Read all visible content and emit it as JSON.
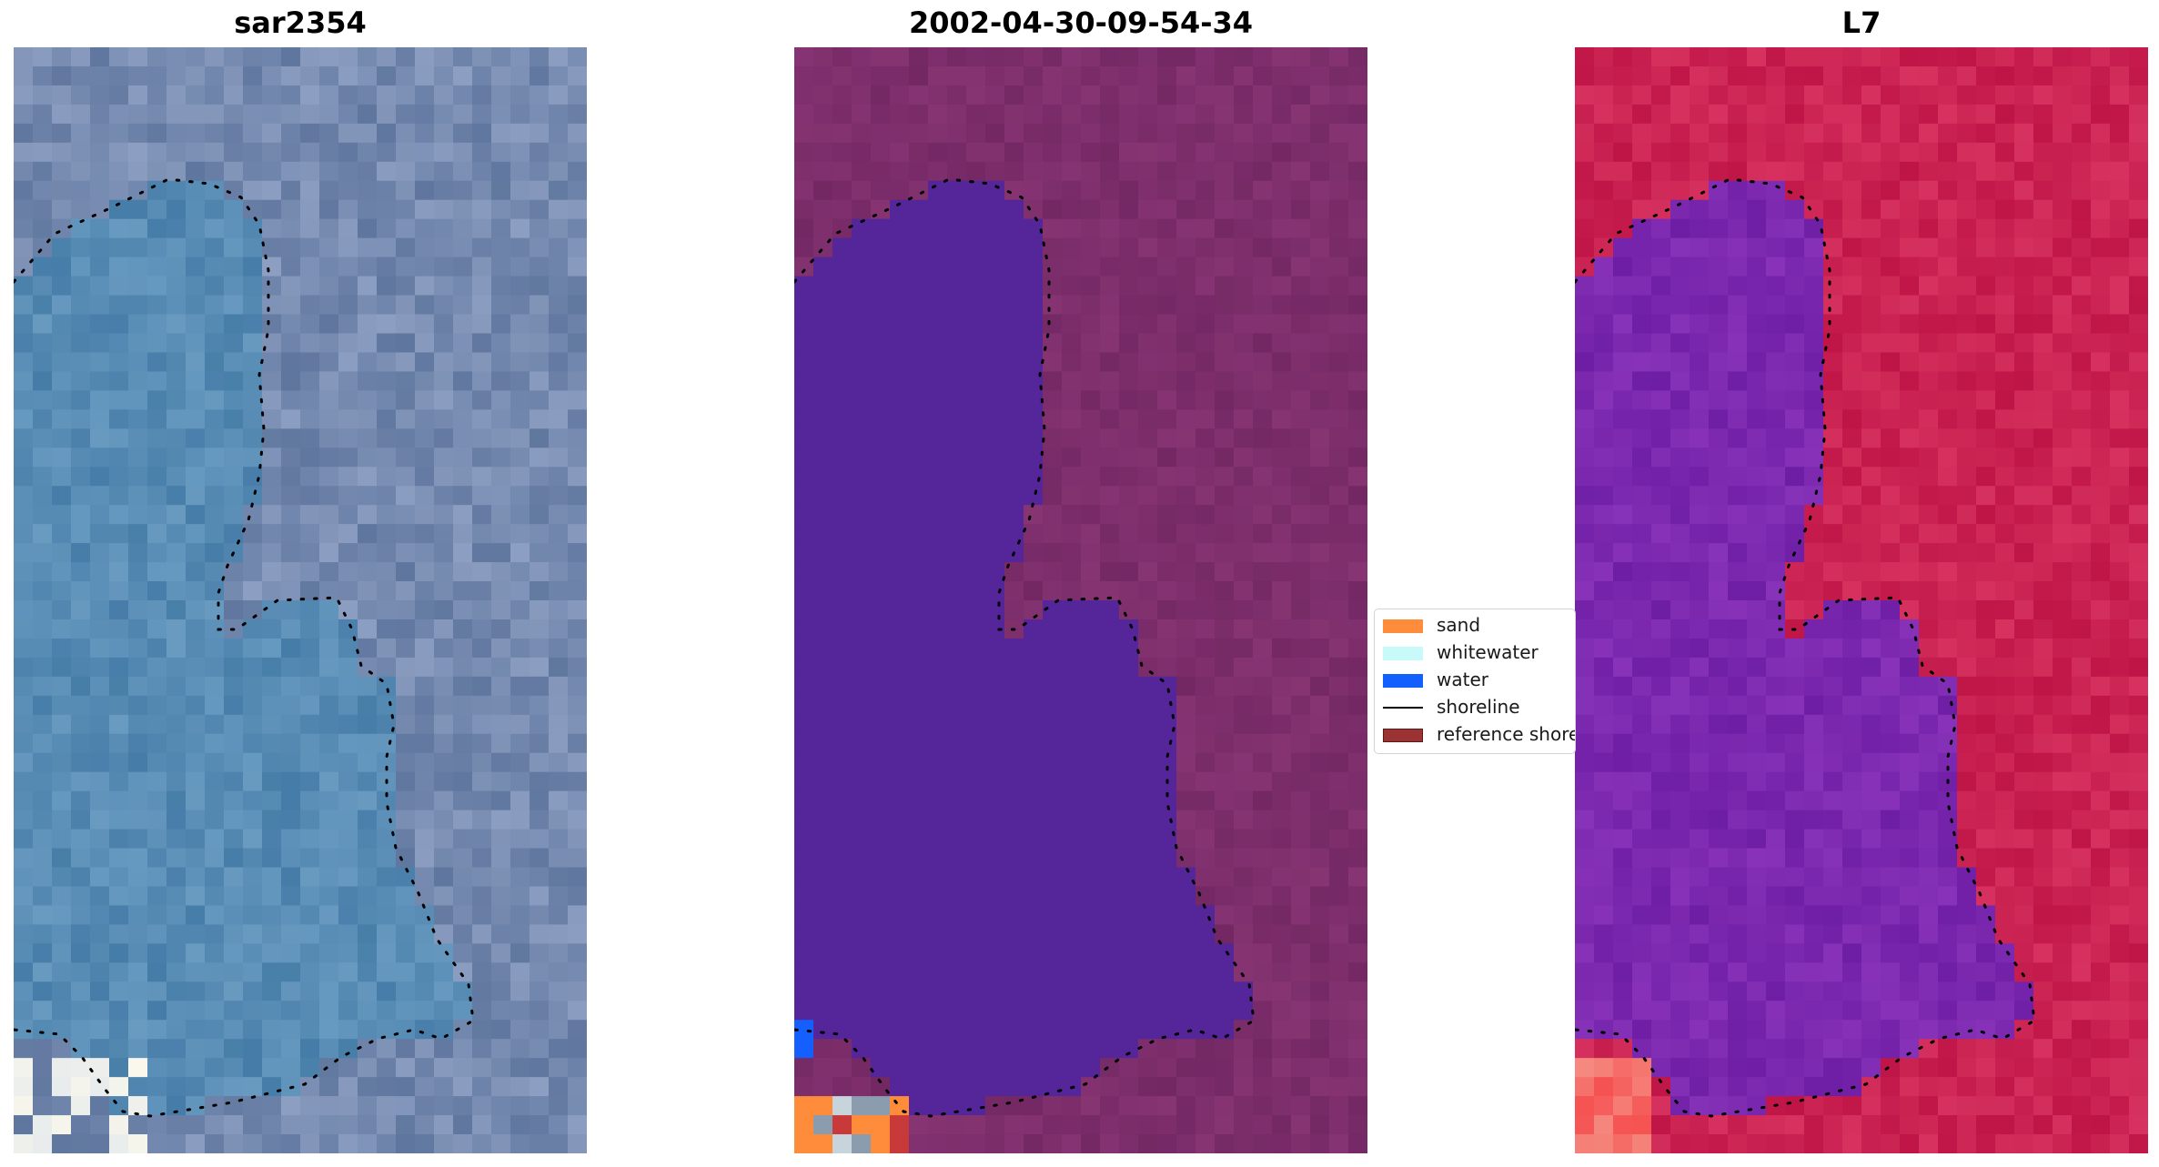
{
  "panels": [
    {
      "title": "sar2354",
      "layer": "rgb"
    },
    {
      "title": "2002-04-30-09-54-34",
      "layer": "classified"
    },
    {
      "title": "L7",
      "layer": "false-color"
    }
  ],
  "legend": {
    "items": [
      {
        "label": "sand",
        "kind": "patch",
        "color": "#ff8c3a"
      },
      {
        "label": "whitewater",
        "kind": "patch",
        "color": "#c8fafa"
      },
      {
        "label": "water",
        "kind": "patch",
        "color": "#1460ff"
      },
      {
        "label": "shoreline",
        "kind": "line",
        "color": "#000000"
      },
      {
        "label": "reference shoreline",
        "kind": "patch",
        "color": "#9b3333"
      }
    ]
  },
  "colors": {
    "rgb_water": "#4a78a6",
    "rgb_land": "#6f88b0",
    "rgb_bright": "#e8eef4",
    "classified_water": "#55259a",
    "classified_land": "#7a2c6a",
    "false_color_water": "#7a25a8",
    "false_color_land": "#c41a4c",
    "shoreline_dots": "#000000"
  }
}
